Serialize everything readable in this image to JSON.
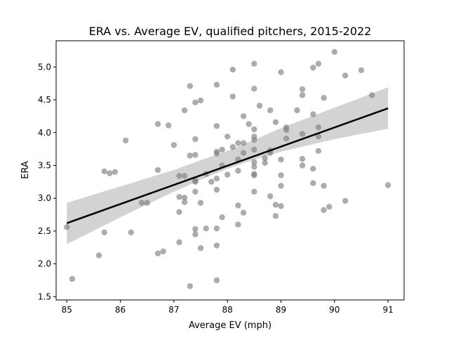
{
  "chart_data": {
    "type": "scatter",
    "title": "ERA vs. Average EV, qualified pitchers, 2015-2022",
    "xlabel": "Average EV (mph)",
    "ylabel": "ERA",
    "xlim": [
      84.8,
      91.3
    ],
    "ylim": [
      1.45,
      5.4
    ],
    "xticks": [
      85,
      86,
      87,
      88,
      89,
      90,
      91
    ],
    "yticks": [
      1.5,
      2.0,
      2.5,
      3.0,
      3.5,
      4.0,
      4.5,
      5.0
    ],
    "xtick_labels": [
      "85",
      "86",
      "87",
      "88",
      "89",
      "90",
      "91"
    ],
    "ytick_labels": [
      "1.5",
      "2.0",
      "2.5",
      "3.0",
      "3.5",
      "4.0",
      "4.5",
      "5.0"
    ],
    "grid": false,
    "colors": {
      "points": "#808080",
      "regression_line": "#000000",
      "confidence_band": "#d3d3d3"
    },
    "points": [
      [
        85.0,
        2.56
      ],
      [
        85.1,
        1.77
      ],
      [
        85.6,
        2.13
      ],
      [
        85.7,
        3.41
      ],
      [
        85.7,
        2.48
      ],
      [
        85.8,
        3.38
      ],
      [
        85.9,
        3.4
      ],
      [
        86.1,
        3.88
      ],
      [
        86.2,
        2.48
      ],
      [
        86.4,
        2.93
      ],
      [
        86.5,
        2.93
      ],
      [
        86.7,
        4.13
      ],
      [
        86.7,
        3.43
      ],
      [
        86.7,
        2.16
      ],
      [
        86.8,
        2.19
      ],
      [
        86.9,
        4.11
      ],
      [
        87.0,
        3.81
      ],
      [
        87.1,
        3.34
      ],
      [
        87.1,
        3.02
      ],
      [
        87.1,
        2.79
      ],
      [
        87.1,
        2.33
      ],
      [
        87.2,
        4.34
      ],
      [
        87.2,
        3.34
      ],
      [
        87.2,
        3.01
      ],
      [
        87.2,
        2.94
      ],
      [
        87.3,
        4.71
      ],
      [
        87.3,
        3.65
      ],
      [
        87.3,
        1.66
      ],
      [
        87.4,
        4.46
      ],
      [
        87.4,
        3.9
      ],
      [
        87.4,
        3.66
      ],
      [
        87.4,
        3.27
      ],
      [
        87.4,
        3.25
      ],
      [
        87.4,
        3.1
      ],
      [
        87.4,
        2.53
      ],
      [
        87.4,
        2.45
      ],
      [
        87.5,
        4.49
      ],
      [
        87.5,
        2.93
      ],
      [
        87.5,
        2.24
      ],
      [
        87.6,
        3.37
      ],
      [
        87.6,
        2.54
      ],
      [
        87.7,
        3.25
      ],
      [
        87.8,
        4.73
      ],
      [
        87.8,
        4.1
      ],
      [
        87.8,
        3.71
      ],
      [
        87.8,
        3.68
      ],
      [
        87.8,
        3.3
      ],
      [
        87.8,
        3.13
      ],
      [
        87.8,
        2.54
      ],
      [
        87.8,
        2.28
      ],
      [
        87.8,
        1.75
      ],
      [
        87.9,
        3.74
      ],
      [
        87.9,
        3.5
      ],
      [
        87.9,
        2.71
      ],
      [
        88.0,
        3.94
      ],
      [
        88.0,
        3.36
      ],
      [
        88.1,
        4.96
      ],
      [
        88.1,
        4.55
      ],
      [
        88.1,
        3.78
      ],
      [
        88.2,
        3.84
      ],
      [
        88.2,
        3.59
      ],
      [
        88.2,
        3.42
      ],
      [
        88.2,
        2.89
      ],
      [
        88.2,
        2.6
      ],
      [
        88.3,
        4.25
      ],
      [
        88.3,
        3.84
      ],
      [
        88.3,
        3.69
      ],
      [
        88.3,
        2.78
      ],
      [
        88.4,
        4.13
      ],
      [
        88.5,
        5.05
      ],
      [
        88.5,
        4.67
      ],
      [
        88.5,
        4.05
      ],
      [
        88.5,
        3.94
      ],
      [
        88.5,
        3.89
      ],
      [
        88.5,
        3.74
      ],
      [
        88.5,
        3.55
      ],
      [
        88.5,
        3.48
      ],
      [
        88.5,
        3.37
      ],
      [
        88.5,
        3.35
      ],
      [
        88.5,
        3.1
      ],
      [
        88.6,
        4.41
      ],
      [
        88.7,
        3.61
      ],
      [
        88.7,
        3.54
      ],
      [
        88.8,
        4.34
      ],
      [
        88.8,
        3.73
      ],
      [
        88.8,
        3.69
      ],
      [
        88.8,
        3.03
      ],
      [
        88.9,
        4.16
      ],
      [
        88.9,
        2.9
      ],
      [
        88.9,
        2.73
      ],
      [
        89.0,
        4.92
      ],
      [
        89.0,
        3.59
      ],
      [
        89.0,
        3.35
      ],
      [
        89.0,
        3.19
      ],
      [
        89.0,
        2.88
      ],
      [
        89.1,
        4.08
      ],
      [
        89.1,
        4.04
      ],
      [
        89.1,
        3.91
      ],
      [
        89.3,
        4.34
      ],
      [
        89.4,
        4.66
      ],
      [
        89.4,
        4.57
      ],
      [
        89.4,
        3.98
      ],
      [
        89.4,
        3.6
      ],
      [
        89.4,
        3.5
      ],
      [
        89.6,
        4.99
      ],
      [
        89.6,
        4.28
      ],
      [
        89.6,
        3.45
      ],
      [
        89.6,
        3.23
      ],
      [
        89.7,
        5.05
      ],
      [
        89.7,
        4.08
      ],
      [
        89.7,
        3.94
      ],
      [
        89.7,
        3.72
      ],
      [
        89.8,
        4.53
      ],
      [
        89.8,
        3.19
      ],
      [
        89.8,
        2.82
      ],
      [
        89.9,
        2.87
      ],
      [
        90.0,
        5.23
      ],
      [
        90.2,
        4.87
      ],
      [
        90.2,
        2.96
      ],
      [
        90.5,
        4.95
      ],
      [
        90.7,
        4.57
      ],
      [
        91.0,
        3.2
      ]
    ],
    "regression": {
      "x": [
        85.0,
        91.0
      ],
      "y": [
        2.62,
        4.37
      ]
    },
    "confidence_band": {
      "x": [
        85.0,
        86.0,
        87.0,
        87.5,
        88.0,
        88.5,
        89.0,
        90.0,
        91.0
      ],
      "lower": [
        2.3,
        2.71,
        3.1,
        3.28,
        3.45,
        3.59,
        3.71,
        3.9,
        4.06
      ],
      "upper": [
        2.93,
        3.18,
        3.43,
        3.58,
        3.72,
        3.89,
        4.07,
        4.38,
        4.69
      ]
    }
  }
}
